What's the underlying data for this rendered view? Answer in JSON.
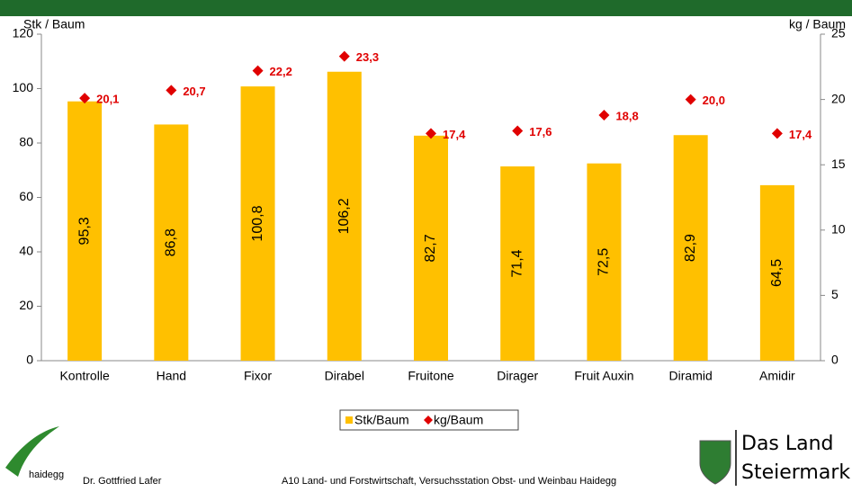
{
  "chart_data": {
    "type": "combo",
    "y_label": "Stk / Baum",
    "y2_label": "kg / Baum",
    "categories": [
      "Kontrolle",
      "Hand",
      "Fixor",
      "Dirabel",
      "Fruitone",
      "Dirager",
      "Fruit Auxin",
      "Diramid",
      "Amidir"
    ],
    "series": [
      {
        "name": "Stk/Baum",
        "type": "bar",
        "color": "#FFC000",
        "values": [
          95.3,
          86.8,
          100.8,
          106.2,
          82.7,
          71.4,
          72.5,
          82.9,
          64.5
        ],
        "value_labels": [
          "95,3",
          "86,8",
          "100,8",
          "106,2",
          "82,7",
          "71,4",
          "72,5",
          "82,9",
          "64,5"
        ]
      },
      {
        "name": "kg/Baum",
        "type": "marker",
        "axis": "y2",
        "color": "#E00000",
        "values": [
          20.1,
          20.7,
          22.2,
          23.3,
          17.4,
          17.6,
          18.8,
          20.0,
          17.4
        ],
        "value_labels": [
          "20,1",
          "20,7",
          "22,2",
          "23,3",
          "17,4",
          "17,6",
          "18,8",
          "20,0",
          "17,4"
        ]
      }
    ],
    "ylim": [
      0,
      120
    ],
    "yticks": [
      0,
      20,
      40,
      60,
      80,
      100,
      120
    ],
    "y2lim": [
      0,
      25
    ],
    "y2ticks": [
      0,
      5,
      10,
      15,
      20,
      25
    ],
    "legend": "bottom"
  },
  "footer": {
    "logo_text": "haidegg",
    "author": "Dr. Gottfried Lafer",
    "institution": "A10 Land- und Forstwirtschaft, Versuchsstation Obst- und Weinbau Haidegg",
    "brand": [
      "Das Land",
      "Steiermark"
    ]
  }
}
